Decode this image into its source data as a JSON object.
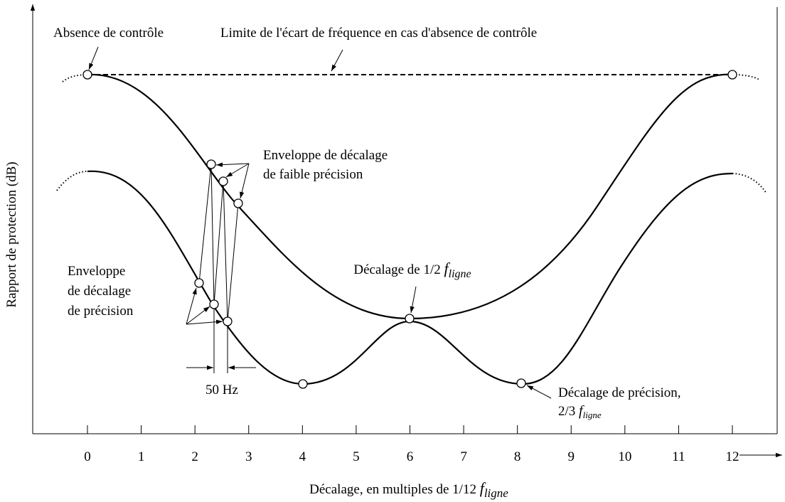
{
  "axes": {
    "y_label": "Rapport de protection (dB)",
    "x_label": {
      "text": "Décalage, en multiples de 1/12",
      "f": "f",
      "sub": "ligne"
    },
    "x_ticks": [
      0,
      1,
      2,
      3,
      4,
      5,
      6,
      7,
      8,
      9,
      10,
      11,
      12
    ]
  },
  "annotations": {
    "no_control": "Absence de contrôle",
    "limit": "Limite de l'écart de fréquence en cas d'absence de contrôle",
    "low_precision": [
      "Enveloppe de décalage",
      "de faible précision"
    ],
    "half_offset": {
      "text": "Décalage de 1/2",
      "f": "f",
      "sub": "ligne"
    },
    "precision_envelope": [
      "Enveloppe",
      "de décalage",
      "de précision"
    ],
    "hz": "50 Hz",
    "precision_offset": {
      "line1": "Décalage de précision,",
      "text": "2/3",
      "f": "f",
      "sub": "ligne"
    }
  }
}
